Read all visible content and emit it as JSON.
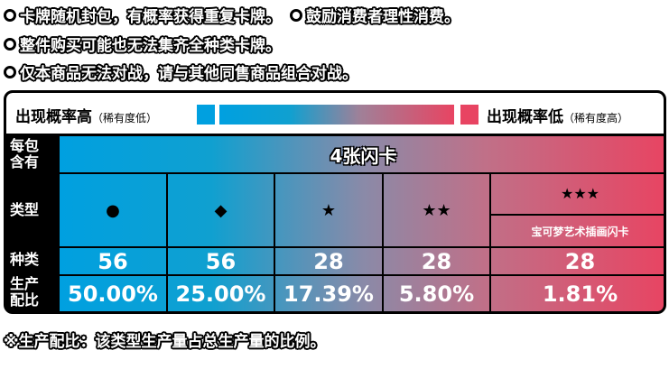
{
  "notes": [
    "卡牌随机封包，有概率获得重复卡牌。",
    "鼓励消费者理性消费。",
    "整件购买可能也无法集齐全种类卡牌。",
    "仅本商品无法对战，请与其他同售商品组合对战。"
  ],
  "legend": {
    "high_label": "出现概率高",
    "high_sub": "（稀有度低）",
    "low_label": "出现概率低",
    "low_sub": "（稀有度高）",
    "color_high": "#00a0e0",
    "color_low": "#e84462"
  },
  "rows": {
    "per_pack": "每包含有",
    "type": "类型",
    "kinds": "种类",
    "ratio": "生产配比"
  },
  "per_pack_value": "4张闪卡",
  "columns": [
    {
      "symbol": "●",
      "icon": "circle-icon",
      "kinds": "56",
      "ratio": "50.00%"
    },
    {
      "symbol": "◆",
      "icon": "diamond-icon",
      "kinds": "56",
      "ratio": "25.00%"
    },
    {
      "symbol": "★",
      "icon": "star-icon",
      "kinds": "28",
      "ratio": "17.39%"
    },
    {
      "symbol": "★★",
      "icon": "two-stars-icon",
      "kinds": "28",
      "ratio": "5.80%"
    },
    {
      "symbol": "★★★",
      "icon": "three-stars-icon",
      "kinds": "28",
      "ratio": "1.81%",
      "sub_label": "宝可梦艺术插画闪卡"
    }
  ],
  "footnote": "※生产配比：该类型生产量占总生产量的比例。"
}
